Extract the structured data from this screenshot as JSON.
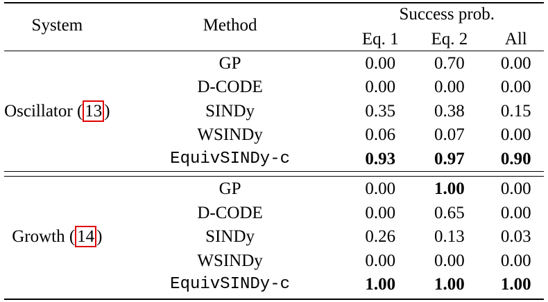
{
  "header": {
    "system": "System",
    "method": "Method",
    "group": "Success prob.",
    "cols": [
      "Eq. 1",
      "Eq. 2",
      "All"
    ]
  },
  "groups": [
    {
      "system": "Oscillator",
      "ref": "13",
      "rows": [
        {
          "method": "GP",
          "mono": false,
          "vals": [
            "0.00",
            "0.70",
            "0.00"
          ],
          "bold": [
            false,
            false,
            false
          ]
        },
        {
          "method": "D-CODE",
          "mono": false,
          "vals": [
            "0.00",
            "0.00",
            "0.00"
          ],
          "bold": [
            false,
            false,
            false
          ]
        },
        {
          "method": "SINDy",
          "mono": false,
          "vals": [
            "0.35",
            "0.38",
            "0.15"
          ],
          "bold": [
            false,
            false,
            false
          ]
        },
        {
          "method": "WSINDy",
          "mono": false,
          "vals": [
            "0.06",
            "0.07",
            "0.00"
          ],
          "bold": [
            false,
            false,
            false
          ]
        },
        {
          "method": "EquivSINDy-c",
          "mono": true,
          "vals": [
            "0.93",
            "0.97",
            "0.90"
          ],
          "bold": [
            true,
            true,
            true
          ]
        }
      ]
    },
    {
      "system": "Growth",
      "ref": "14",
      "rows": [
        {
          "method": "GP",
          "mono": false,
          "vals": [
            "0.00",
            "1.00",
            "0.00"
          ],
          "bold": [
            false,
            true,
            false
          ]
        },
        {
          "method": "D-CODE",
          "mono": false,
          "vals": [
            "0.00",
            "0.65",
            "0.00"
          ],
          "bold": [
            false,
            false,
            false
          ]
        },
        {
          "method": "SINDy",
          "mono": false,
          "vals": [
            "0.26",
            "0.13",
            "0.03"
          ],
          "bold": [
            false,
            false,
            false
          ]
        },
        {
          "method": "WSINDy",
          "mono": false,
          "vals": [
            "0.00",
            "0.00",
            "0.00"
          ],
          "bold": [
            false,
            false,
            false
          ]
        },
        {
          "method": "EquivSINDy-c",
          "mono": true,
          "vals": [
            "1.00",
            "1.00",
            "1.00"
          ],
          "bold": [
            true,
            true,
            true
          ]
        }
      ]
    }
  ],
  "colors": {
    "ref_box": "#e00000"
  }
}
